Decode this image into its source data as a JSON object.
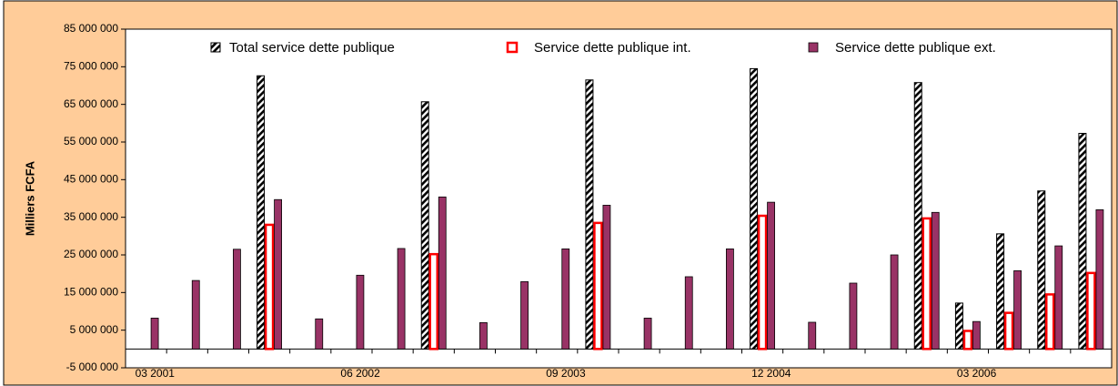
{
  "chart_data": {
    "type": "bar",
    "ylabel": "Milliers FCFA",
    "categories": [
      "03 2001",
      null,
      null,
      null,
      null,
      "06 2002",
      null,
      null,
      null,
      null,
      "09 2003",
      null,
      null,
      null,
      null,
      "12 2004",
      null,
      null,
      null,
      null,
      "03 2006",
      null,
      null,
      null
    ],
    "series": [
      {
        "name": "Total service dette publique",
        "color": "#000000",
        "values": [
          null,
          null,
          null,
          72600000,
          null,
          null,
          null,
          65700000,
          null,
          null,
          null,
          71500000,
          null,
          null,
          null,
          74500000,
          null,
          null,
          null,
          70800000,
          12200000,
          30600000,
          42000000,
          57300000
        ]
      },
      {
        "name": "Service dette publique int.",
        "color": "#ff0000",
        "values": [
          null,
          null,
          null,
          33000000,
          null,
          null,
          null,
          25200000,
          null,
          null,
          null,
          33500000,
          null,
          null,
          null,
          35400000,
          null,
          null,
          null,
          34700000,
          4800000,
          9600000,
          14500000,
          20200000
        ]
      },
      {
        "name": "Service dette publique ext.",
        "color": "#993366",
        "values": [
          8200000,
          18200000,
          26500000,
          39700000,
          8000000,
          19600000,
          26700000,
          40400000,
          7000000,
          17900000,
          26600000,
          38200000,
          8200000,
          19200000,
          26600000,
          39000000,
          7100000,
          17500000,
          25000000,
          36300000,
          7300000,
          20800000,
          27400000,
          37000000
        ]
      }
    ],
    "ylim": [
      -5000000,
      85000000
    ],
    "yticks": [
      {
        "value": -5000000,
        "label": "-5 000 000"
      },
      {
        "value": 5000000,
        "label": "5 000 000"
      },
      {
        "value": 15000000,
        "label": "15 000 000"
      },
      {
        "value": 25000000,
        "label": "25 000 000"
      },
      {
        "value": 35000000,
        "label": "35 000 000"
      },
      {
        "value": 45000000,
        "label": "45 000 000"
      },
      {
        "value": 55000000,
        "label": "55 000 000"
      },
      {
        "value": 65000000,
        "label": "65 000 000"
      },
      {
        "value": 75000000,
        "label": "75 000 000"
      },
      {
        "value": 85000000,
        "label": "85 000 000"
      }
    ],
    "grid": false
  }
}
